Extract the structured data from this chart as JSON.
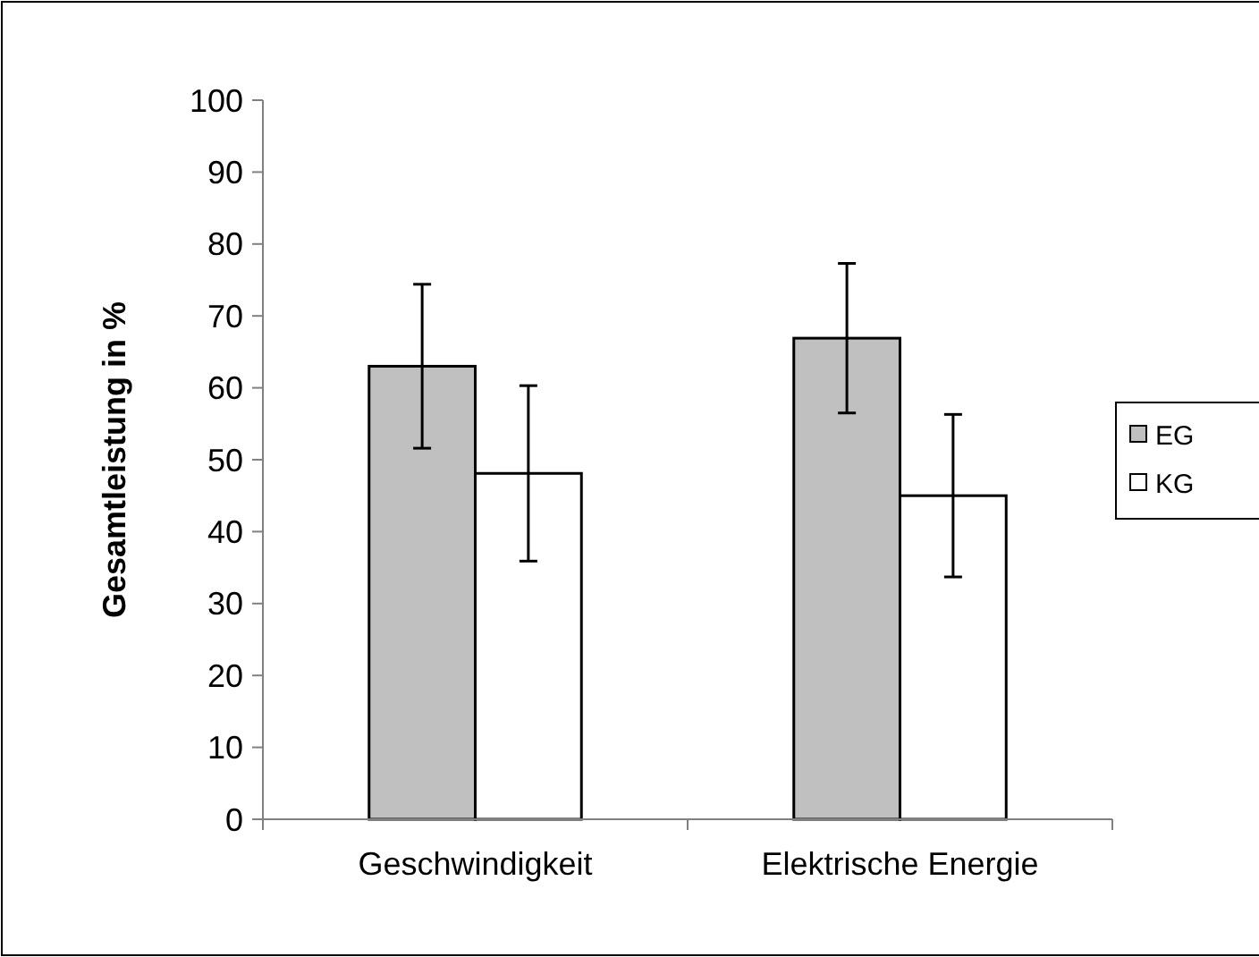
{
  "chart_data": {
    "type": "bar",
    "ylabel": "Gesamtleistung in %",
    "categories": [
      "Geschwindigkeit",
      "Elektrische Energie"
    ],
    "series": [
      {
        "name": "EG",
        "color": "#c0c0c0",
        "values": [
          63.0,
          66.9
        ],
        "errors": [
          11.4,
          10.4
        ]
      },
      {
        "name": "KG",
        "color": "#ffffff",
        "values": [
          48.1,
          45.0
        ],
        "errors": [
          12.2,
          11.3
        ]
      }
    ],
    "ylim": [
      0,
      100
    ],
    "yticks": [
      0,
      10,
      20,
      30,
      40,
      50,
      60,
      70,
      80,
      90,
      100
    ],
    "grid": false,
    "legend": "right"
  }
}
